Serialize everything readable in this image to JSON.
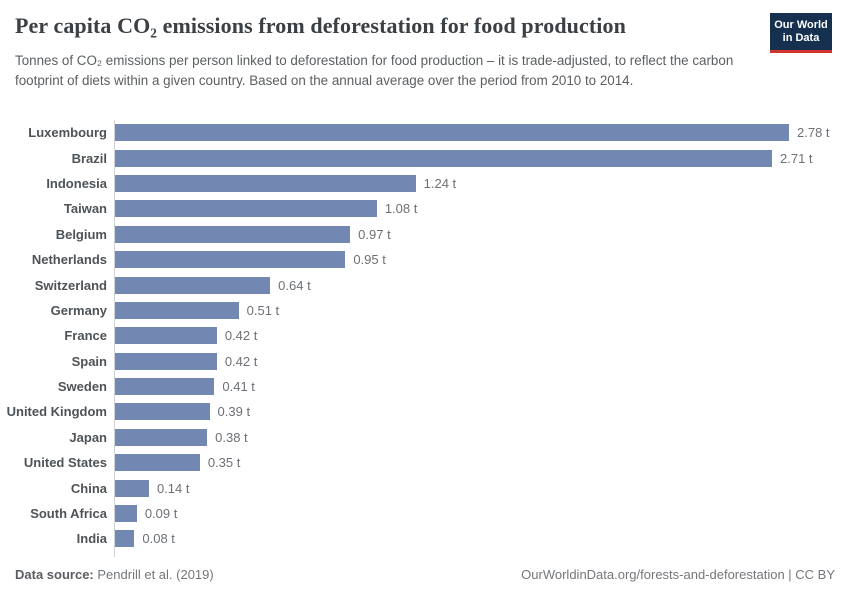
{
  "header": {
    "title": "Per capita CO₂ emissions from deforestation for food production",
    "subtitle": "Tonnes of CO₂ emissions per person linked to deforestation for food production – it is trade-adjusted, to reflect the carbon footprint of diets within a given country. Based on the annual average over the period from 2010 to 2014."
  },
  "logo": {
    "line1": "Our World",
    "line2": "in Data",
    "background_color": "#16304f",
    "stripe_color": "#d0342c",
    "text_color": "#ffffff"
  },
  "chart_data": {
    "type": "bar",
    "orientation": "horizontal",
    "title": "Per capita CO₂ emissions from deforestation for food production",
    "unit": "t",
    "categories": [
      "Luxembourg",
      "Brazil",
      "Indonesia",
      "Taiwan",
      "Belgium",
      "Netherlands",
      "Switzerland",
      "Germany",
      "France",
      "Spain",
      "Sweden",
      "United Kingdom",
      "Japan",
      "United States",
      "China",
      "South Africa",
      "India"
    ],
    "values": [
      2.78,
      2.71,
      1.24,
      1.08,
      0.97,
      0.95,
      0.64,
      0.51,
      0.42,
      0.42,
      0.41,
      0.39,
      0.38,
      0.35,
      0.14,
      0.09,
      0.08
    ],
    "value_labels": [
      "2.78 t",
      "2.71 t",
      "1.24 t",
      "1.08 t",
      "0.97 t",
      "0.95 t",
      "0.64 t",
      "0.51 t",
      "0.42 t",
      "0.42 t",
      "0.41 t",
      "0.39 t",
      "0.38 t",
      "0.35 t",
      "0.14 t",
      "0.09 t",
      "0.08 t"
    ],
    "xlim": [
      0,
      2.78
    ],
    "grid": false,
    "legend": "none",
    "bar_color": "#7287b2",
    "value_label_position": "right-of-bar"
  },
  "footer": {
    "source_label": "Data source:",
    "source_value": "Pendrill et al. (2019)",
    "right_text": "OurWorldinData.org/forests-and-deforestation | CC BY"
  }
}
